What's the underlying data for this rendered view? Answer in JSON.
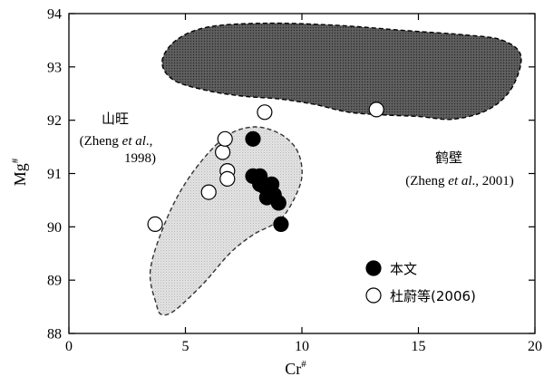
{
  "chart_data": {
    "type": "scatter",
    "xlabel": "Cr",
    "xlabel_sup": "#",
    "ylabel": "Mg",
    "ylabel_sup": "#",
    "xlim": [
      0,
      20
    ],
    "ylim": [
      88,
      94
    ],
    "x_ticks": [
      0,
      5,
      10,
      15,
      20
    ],
    "y_ticks": [
      88,
      89,
      90,
      91,
      92,
      93,
      94
    ],
    "grid": false,
    "legend_position": "bottom-right",
    "legend": [
      {
        "label": "本文",
        "marker": "filled-circle"
      },
      {
        "label": "杜蔚等(2006)",
        "marker": "open-circle"
      }
    ],
    "series": [
      {
        "name": "本文",
        "marker": "filled-circle",
        "points": [
          {
            "x": 7.9,
            "y": 91.65
          },
          {
            "x": 7.9,
            "y": 90.95
          },
          {
            "x": 8.2,
            "y": 90.95
          },
          {
            "x": 8.2,
            "y": 90.8
          },
          {
            "x": 8.4,
            "y": 90.75
          },
          {
            "x": 8.7,
            "y": 90.8
          },
          {
            "x": 8.5,
            "y": 90.55
          },
          {
            "x": 8.8,
            "y": 90.6
          },
          {
            "x": 9.0,
            "y": 90.45
          },
          {
            "x": 9.1,
            "y": 90.05
          }
        ]
      },
      {
        "name": "杜蔚等(2006)",
        "marker": "open-circle",
        "points": [
          {
            "x": 3.7,
            "y": 90.05
          },
          {
            "x": 6.0,
            "y": 90.65
          },
          {
            "x": 6.6,
            "y": 91.4
          },
          {
            "x": 6.7,
            "y": 91.65
          },
          {
            "x": 6.8,
            "y": 91.05
          },
          {
            "x": 6.8,
            "y": 90.9
          },
          {
            "x": 8.4,
            "y": 92.15
          },
          {
            "x": 13.2,
            "y": 92.2
          }
        ]
      }
    ],
    "regions": [
      {
        "name_text": "鹤壁",
        "citation_text": "(Zheng et al., 2001)",
        "fill": "#555555",
        "stroke": "#000000",
        "dashed": true,
        "outline": [
          [
            4.0,
            93.1
          ],
          [
            4.6,
            93.5
          ],
          [
            6.0,
            93.75
          ],
          [
            8.5,
            93.82
          ],
          [
            11.5,
            93.78
          ],
          [
            14.5,
            93.68
          ],
          [
            17.0,
            93.6
          ],
          [
            18.6,
            93.5
          ],
          [
            19.4,
            93.2
          ],
          [
            19.0,
            92.6
          ],
          [
            18.0,
            92.2
          ],
          [
            16.5,
            92.02
          ],
          [
            15.0,
            92.07
          ],
          [
            13.5,
            92.1
          ],
          [
            12.0,
            92.15
          ],
          [
            10.5,
            92.3
          ],
          [
            9.0,
            92.4
          ],
          [
            7.5,
            92.45
          ],
          [
            6.0,
            92.55
          ],
          [
            4.5,
            92.75
          ]
        ]
      },
      {
        "name_text": "山旺",
        "citation_text": "(Zheng et al., 1998)",
        "fill": "#dedede",
        "stroke": "#333333",
        "dashed": true,
        "outline": [
          [
            3.5,
            89.2
          ],
          [
            3.75,
            88.55
          ],
          [
            4.0,
            88.35
          ],
          [
            4.6,
            88.45
          ],
          [
            5.8,
            88.95
          ],
          [
            6.9,
            89.5
          ],
          [
            7.9,
            89.85
          ],
          [
            9.1,
            90.15
          ],
          [
            9.85,
            90.7
          ],
          [
            10.0,
            91.1
          ],
          [
            9.7,
            91.5
          ],
          [
            8.9,
            91.78
          ],
          [
            7.8,
            91.87
          ],
          [
            6.6,
            91.65
          ],
          [
            5.2,
            90.95
          ],
          [
            4.2,
            90.15
          ]
        ]
      }
    ]
  },
  "labels": {
    "xaxis_main": "Cr",
    "xaxis_sup": "#",
    "yaxis_main": "Mg",
    "yaxis_sup": "#",
    "hebi_name": "鹤壁",
    "hebi_cite_pre": "(Zheng ",
    "hebi_cite_em": "et al",
    "hebi_cite_post": "., 2001)",
    "shanwang_name": "山旺",
    "shanwang_cite_line1_pre": "(Zheng ",
    "shanwang_cite_line1_em": "et al",
    "shanwang_cite_line1_post": ".,",
    "shanwang_cite_line2": "1998)",
    "legend_filled": "本文",
    "legend_open": "杜蔚等(2006)"
  },
  "colors": {
    "hebi_fill": "#555555",
    "shanwang_fill": "#dedede",
    "marker_filled": "#000000",
    "marker_open_fill": "#ffffff",
    "axis": "#000000"
  }
}
